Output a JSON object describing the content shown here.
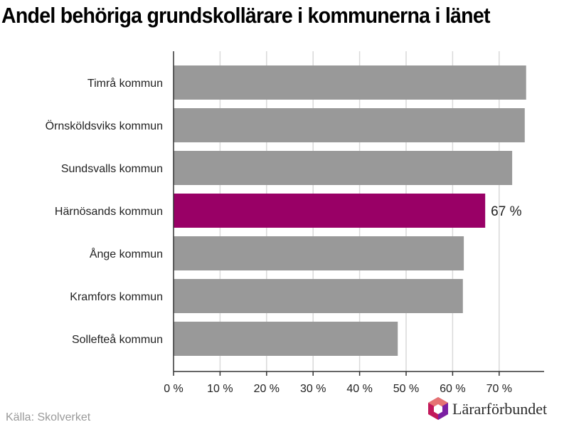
{
  "chart_data": {
    "type": "bar",
    "orientation": "horizontal",
    "title": "Andel behöriga grundskollärare i kommunerna i länet",
    "categories": [
      "Timrå kommun",
      "Örnsköldsviks kommun",
      "Sundsvalls kommun",
      "Härnösands kommun",
      "Ånge kommun",
      "Kramfors kommun",
      "Sollefteå kommun"
    ],
    "values": [
      75.8,
      75.5,
      72.8,
      67.0,
      62.4,
      62.2,
      48.2
    ],
    "highlight_index": 3,
    "highlight_label": "67 %",
    "xlim": [
      0,
      80
    ],
    "xticks": [
      0,
      10,
      20,
      30,
      40,
      50,
      60,
      70
    ],
    "xtick_labels": [
      "0 %",
      "10 %",
      "20 %",
      "30 %",
      "40 %",
      "50 %",
      "60 %",
      "70 %"
    ],
    "grid": true,
    "colors": {
      "bar": "#999999",
      "highlight": "#990066",
      "grid": "#d9d9d9",
      "axis": "#333333"
    }
  },
  "source": "Källa: Skolverket",
  "logo": {
    "text": "Lärarförbundet",
    "icon": "lararforbundet-logo-icon"
  }
}
